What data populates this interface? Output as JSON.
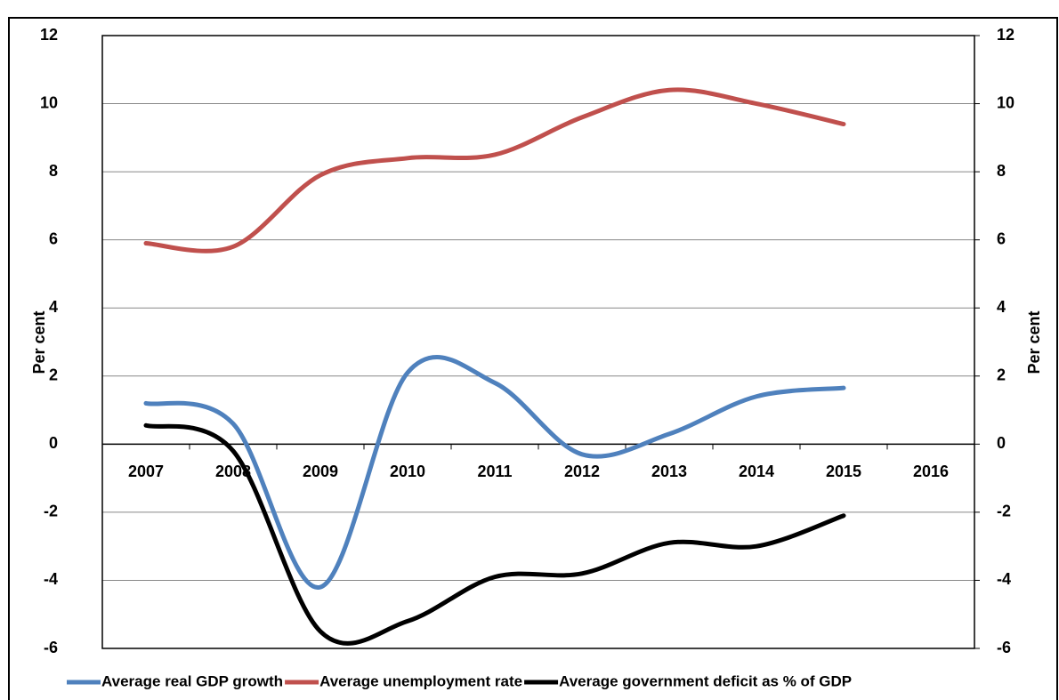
{
  "chart_data": {
    "type": "line",
    "categories": [
      "2007",
      "2008",
      "2009",
      "2010",
      "2011",
      "2012",
      "2013",
      "2014",
      "2015",
      "2016"
    ],
    "series": [
      {
        "name": "Average real GDP growth",
        "color": "#4f81bd",
        "values": [
          1.2,
          0.6,
          -4.2,
          2.1,
          1.8,
          -0.3,
          0.3,
          1.4,
          1.65,
          null
        ]
      },
      {
        "name": "Average unemployment rate",
        "color": "#c0504d",
        "values": [
          5.9,
          5.8,
          7.9,
          8.4,
          8.5,
          9.6,
          10.4,
          10.0,
          9.4,
          null
        ]
      },
      {
        "name": "Average government deficit as % of GDP",
        "color": "#000000",
        "values": [
          0.55,
          -0.2,
          -5.5,
          -5.2,
          -3.9,
          -3.8,
          -2.9,
          -3.0,
          -2.1,
          null
        ]
      }
    ],
    "ylabel": "Per cent",
    "y2label": "Per cent",
    "ylim": [
      -6,
      12
    ],
    "yticks": [
      -6,
      -4,
      -2,
      0,
      2,
      4,
      6,
      8,
      10,
      12
    ],
    "y2lim": [
      -6,
      12
    ],
    "y2ticks": [
      -6,
      -4,
      -2,
      0,
      2,
      4,
      6,
      8,
      10,
      12
    ],
    "grid": true,
    "legend": "bottom"
  }
}
